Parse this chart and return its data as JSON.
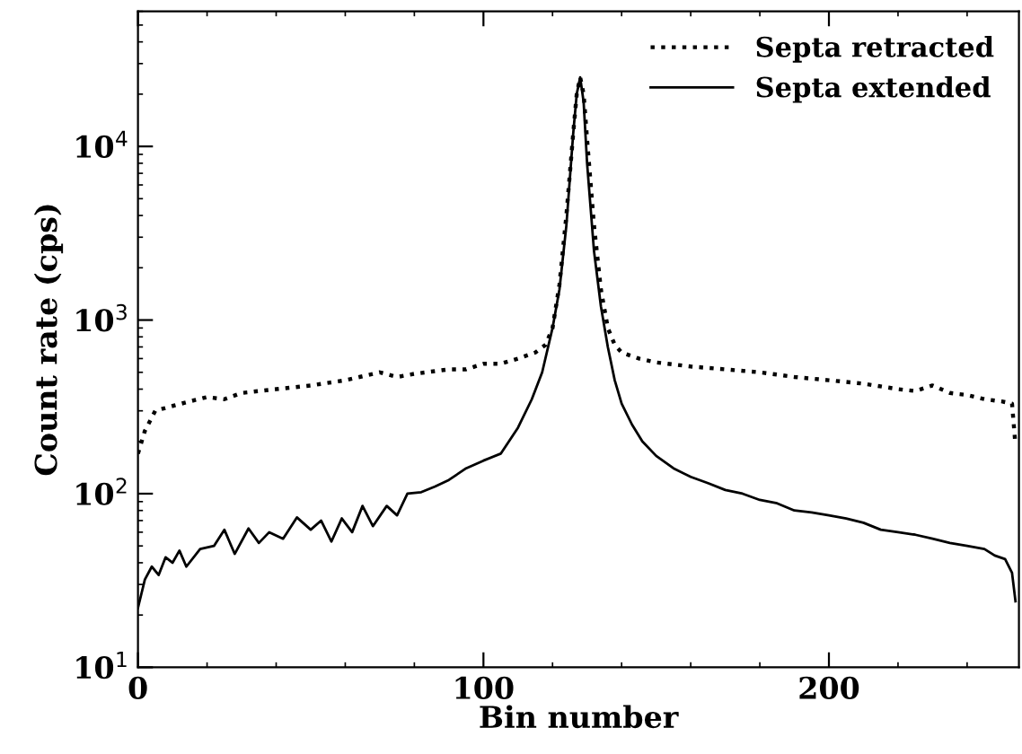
{
  "chart_data": {
    "type": "line",
    "xlabel": "Bin number",
    "ylabel": "Count rate (cps)",
    "log": "y",
    "xlim": [
      0,
      255
    ],
    "xticks": [
      0,
      100,
      200
    ],
    "ylim": [
      10,
      60000
    ],
    "yticks": [
      {
        "value": 10,
        "label": "10$^{1}$"
      },
      {
        "value": 100,
        "label": "10$^{2}$"
      },
      {
        "value": 1000,
        "label": "10$^{3}$"
      },
      {
        "value": 10000,
        "label": "10$^{4}$"
      }
    ],
    "legend": "top right",
    "grid": false,
    "series": [
      {
        "name": "Septa retracted",
        "color": "#000000",
        "line_style": "dotted",
        "x": [
          0,
          2,
          5,
          10,
          15,
          20,
          25,
          30,
          40,
          50,
          60,
          70,
          75,
          80,
          90,
          95,
          100,
          105,
          110,
          115,
          118,
          120,
          122,
          124,
          126,
          127,
          128,
          129,
          130,
          132,
          134,
          136,
          138,
          140,
          145,
          150,
          160,
          170,
          180,
          190,
          200,
          210,
          220,
          225,
          230,
          235,
          240,
          245,
          250,
          253,
          254
        ],
        "values": [
          170,
          230,
          300,
          320,
          340,
          360,
          350,
          380,
          400,
          420,
          450,
          500,
          470,
          490,
          520,
          520,
          560,
          560,
          600,
          650,
          720,
          900,
          1600,
          4000,
          12000,
          20000,
          25000,
          20000,
          11000,
          3500,
          1500,
          900,
          720,
          650,
          600,
          570,
          540,
          520,
          500,
          470,
          450,
          430,
          400,
          390,
          420,
          380,
          370,
          350,
          340,
          330,
          190
        ]
      },
      {
        "name": "Septa extended",
        "color": "#000000",
        "line_style": "solid",
        "x": [
          0,
          2,
          4,
          6,
          8,
          10,
          12,
          14,
          18,
          22,
          25,
          28,
          32,
          35,
          38,
          42,
          46,
          50,
          53,
          56,
          59,
          62,
          65,
          68,
          72,
          75,
          78,
          82,
          86,
          90,
          95,
          100,
          105,
          110,
          114,
          117,
          120,
          122,
          124,
          126,
          127,
          128,
          129,
          130,
          132,
          134,
          136,
          138,
          140,
          143,
          146,
          150,
          155,
          160,
          165,
          170,
          175,
          180,
          185,
          190,
          195,
          200,
          205,
          210,
          215,
          220,
          225,
          230,
          235,
          240,
          245,
          248,
          251,
          253,
          254
        ],
        "values": [
          22,
          32,
          38,
          34,
          43,
          40,
          47,
          38,
          48,
          50,
          62,
          45,
          63,
          52,
          60,
          55,
          73,
          62,
          70,
          53,
          72,
          60,
          85,
          65,
          85,
          75,
          100,
          102,
          110,
          120,
          140,
          155,
          170,
          240,
          350,
          500,
          900,
          1500,
          3500,
          12000,
          20000,
          25000,
          18000,
          8000,
          2500,
          1200,
          700,
          450,
          330,
          250,
          200,
          165,
          140,
          125,
          115,
          105,
          100,
          92,
          88,
          80,
          78,
          75,
          72,
          68,
          62,
          60,
          58,
          55,
          52,
          50,
          48,
          44,
          42,
          35,
          24
        ]
      }
    ]
  }
}
